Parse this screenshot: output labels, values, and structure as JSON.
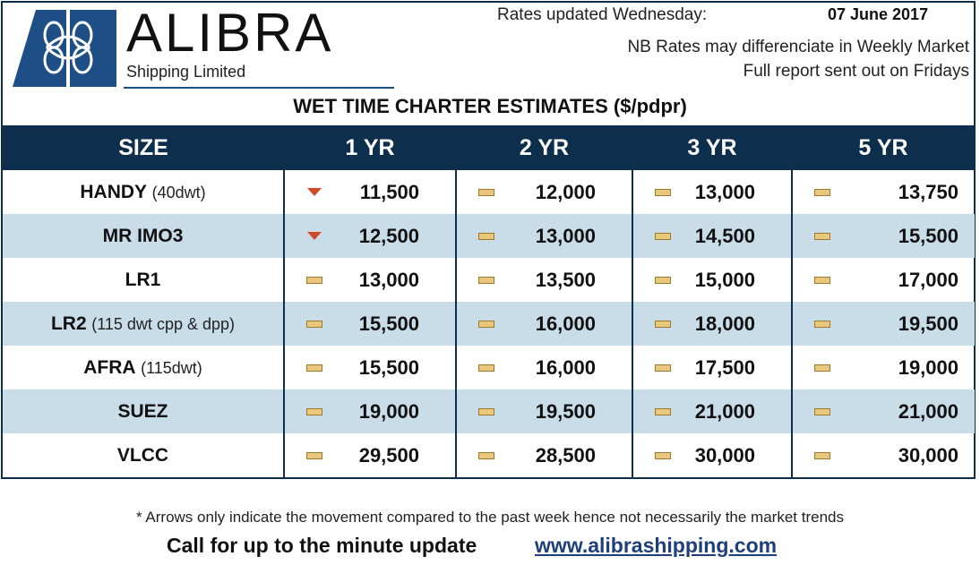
{
  "brand": {
    "name": "ALIBRA",
    "subtitle": "Shipping Limited"
  },
  "header": {
    "rates_updated_label": "Rates updated Wednesday:",
    "rates_date": "07 June 2017",
    "note_line1": "NB Rates may differenciate in Weekly Market",
    "note_line2": "Full report sent out on Fridays"
  },
  "table": {
    "title": "WET TIME CHARTER ESTIMATES ($/pdpr)",
    "columns": [
      "SIZE",
      "1 YR",
      "2 YR",
      "3 YR",
      "5 YR"
    ],
    "rows": [
      {
        "size": "HANDY",
        "desc": "(40dwt)",
        "cells": [
          {
            "trend": "down",
            "value": "11,500"
          },
          {
            "trend": "flat",
            "value": "12,000"
          },
          {
            "trend": "flat",
            "value": "13,000"
          },
          {
            "trend": "flat",
            "value": "13,750"
          }
        ]
      },
      {
        "size": "MR IMO3",
        "desc": "",
        "cells": [
          {
            "trend": "down",
            "value": "12,500"
          },
          {
            "trend": "flat",
            "value": "13,000"
          },
          {
            "trend": "flat",
            "value": "14,500"
          },
          {
            "trend": "flat",
            "value": "15,500"
          }
        ]
      },
      {
        "size": "LR1",
        "desc": "",
        "cells": [
          {
            "trend": "flat",
            "value": "13,000"
          },
          {
            "trend": "flat",
            "value": "13,500"
          },
          {
            "trend": "flat",
            "value": "15,000"
          },
          {
            "trend": "flat",
            "value": "17,000"
          }
        ]
      },
      {
        "size": "LR2",
        "desc": "(115 dwt cpp & dpp)",
        "cells": [
          {
            "trend": "flat",
            "value": "15,500"
          },
          {
            "trend": "flat",
            "value": "16,000"
          },
          {
            "trend": "flat",
            "value": "18,000"
          },
          {
            "trend": "flat",
            "value": "19,500"
          }
        ]
      },
      {
        "size": "AFRA",
        "desc": "(115dwt)",
        "cells": [
          {
            "trend": "flat",
            "value": "15,500"
          },
          {
            "trend": "flat",
            "value": "16,000"
          },
          {
            "trend": "flat",
            "value": "17,500"
          },
          {
            "trend": "flat",
            "value": "19,000"
          }
        ]
      },
      {
        "size": "SUEZ",
        "desc": "",
        "cells": [
          {
            "trend": "flat",
            "value": "19,000"
          },
          {
            "trend": "flat",
            "value": "19,500"
          },
          {
            "trend": "flat",
            "value": "21,000"
          },
          {
            "trend": "flat",
            "value": "21,000"
          }
        ]
      },
      {
        "size": "VLCC",
        "desc": "",
        "cells": [
          {
            "trend": "flat",
            "value": "29,500"
          },
          {
            "trend": "flat",
            "value": "28,500"
          },
          {
            "trend": "flat",
            "value": "30,000"
          },
          {
            "trend": "flat",
            "value": "30,000"
          }
        ]
      }
    ]
  },
  "footer": {
    "footnote": "* Arrows only indicate the movement compared to the past week hence not necessarily the market trends",
    "cta": "Call for up to the minute update",
    "url": "www.alibrashipping.com"
  },
  "colors": {
    "navy": "#0d2e4d",
    "row_alt": "#c9dde9",
    "down_arrow": "#d04a2a",
    "flat_marker": "#e8c87d"
  }
}
